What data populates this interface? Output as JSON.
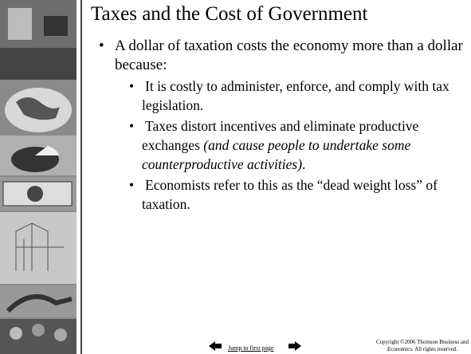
{
  "slide": {
    "title": "Taxes and the Cost of Government",
    "bullets": [
      {
        "text": "A dollar of taxation costs the economy more than a dollar because:",
        "sub": [
          {
            "text": "It is costly to administer, enforce, and comply with tax legislation."
          },
          {
            "text": "Taxes distort incentives and eliminate productive exchanges ",
            "italic": "(and cause people to undertake some counterproductive activities)",
            "tail": "."
          },
          {
            "text": "Economists refer to this as the “dead weight loss” of taxation."
          }
        ]
      }
    ]
  },
  "footer": {
    "link": "Jump to first page",
    "copyright": [
      "Copyright ©2006  Thomson Business and",
      "Economics. All rights reserved."
    ]
  }
}
